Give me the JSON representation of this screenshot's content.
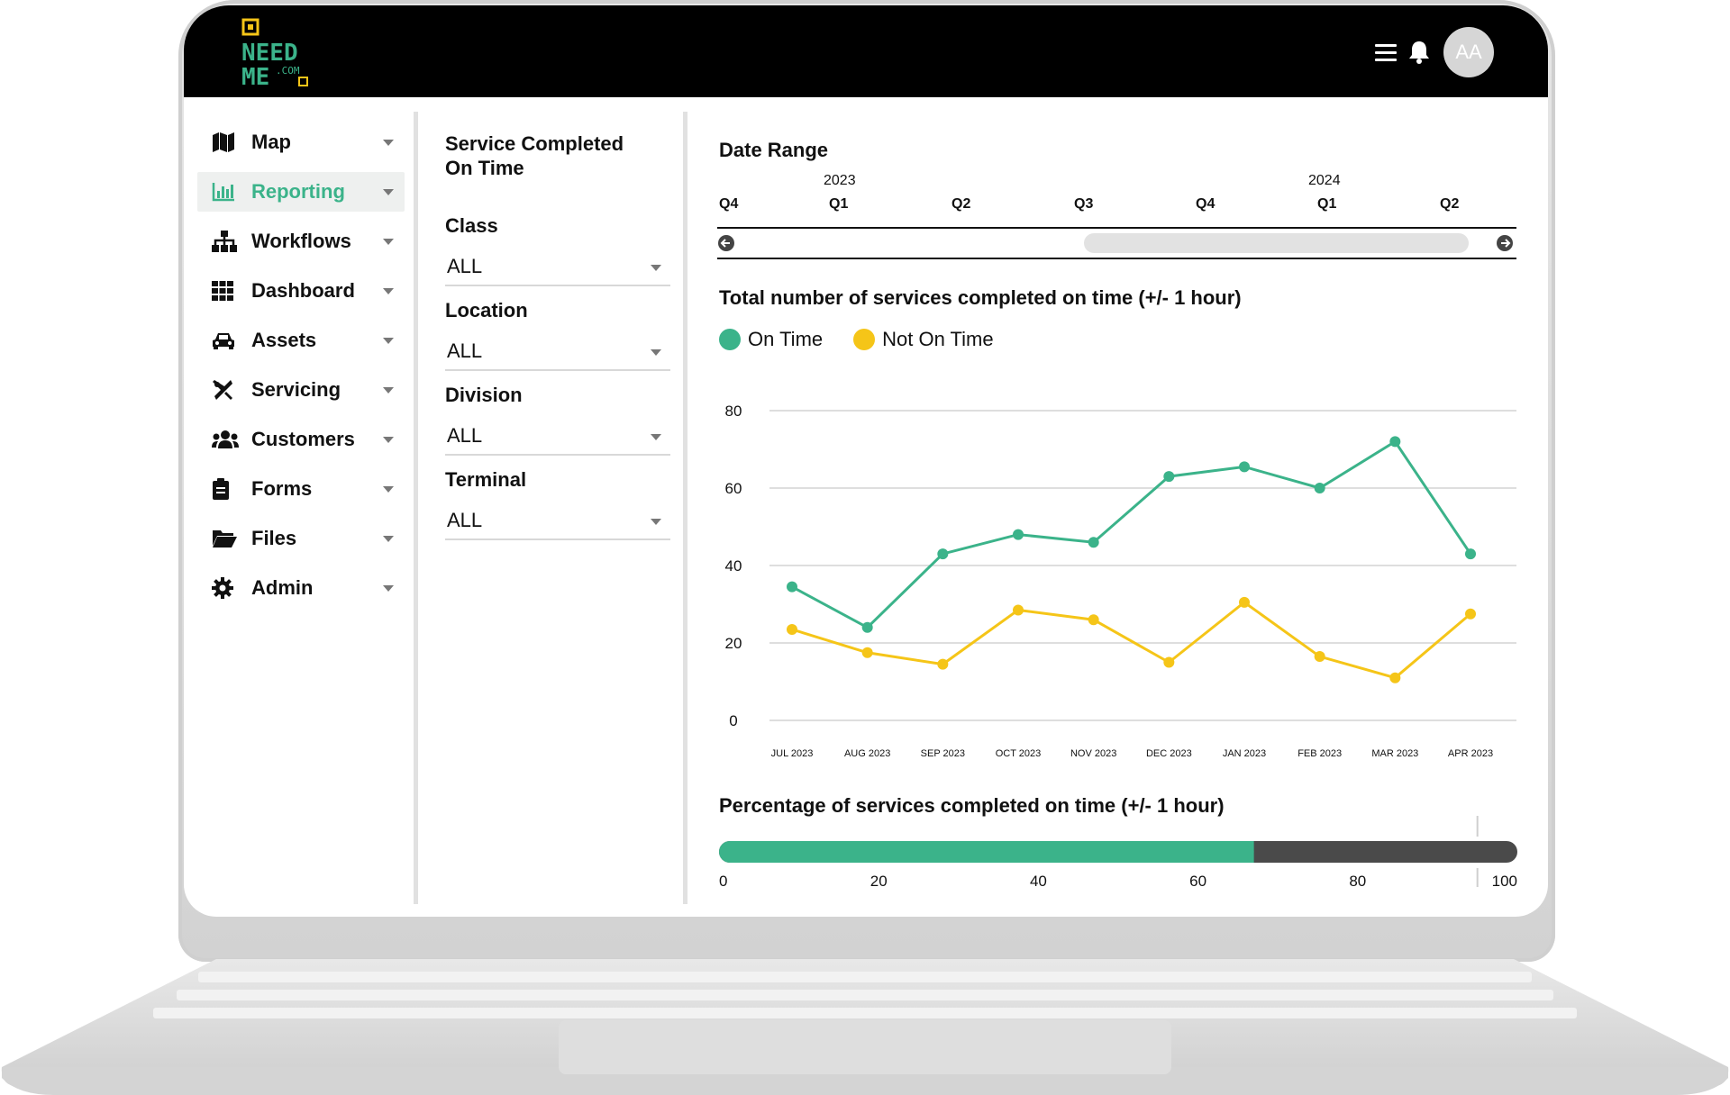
{
  "colors": {
    "accent": "#3bb38a",
    "on_time": "#3bb38a",
    "not_on_time": "#f5c518",
    "bar_rest": "#4a4a4a",
    "logo_yellow": "#f5c518"
  },
  "header": {
    "logo_line1": "NEED",
    "logo_line2": "ME",
    "logo_suffix": ".COM",
    "avatar_initials": "AA",
    "icons": [
      "menu-icon",
      "bell-icon"
    ]
  },
  "sidebar": {
    "items": [
      {
        "label": "Map",
        "icon": "map-icon"
      },
      {
        "label": "Reporting",
        "icon": "bar-chart-icon",
        "active": true
      },
      {
        "label": "Workflows",
        "icon": "sitemap-icon"
      },
      {
        "label": "Dashboard",
        "icon": "grid-icon"
      },
      {
        "label": "Assets",
        "icon": "car-icon"
      },
      {
        "label": "Servicing",
        "icon": "tools-icon"
      },
      {
        "label": "Customers",
        "icon": "users-icon"
      },
      {
        "label": "Forms",
        "icon": "clipboard-icon"
      },
      {
        "label": "Files",
        "icon": "folder-icon"
      },
      {
        "label": "Admin",
        "icon": "gear-icon"
      }
    ]
  },
  "filters": {
    "title": "Service Completed On Time",
    "class": {
      "label": "Class",
      "value": "ALL"
    },
    "location": {
      "label": "Location",
      "value": "ALL"
    },
    "division": {
      "label": "Division",
      "value": "ALL"
    },
    "terminal": {
      "label": "Terminal",
      "value": "ALL"
    }
  },
  "date_range": {
    "label": "Date Range",
    "years": [
      "2023",
      "2024"
    ],
    "quarters": [
      "Q4",
      "Q1",
      "Q2",
      "Q3",
      "Q4",
      "Q1",
      "Q2"
    ],
    "selected_quarters": [
      "Q3",
      "Q2"
    ]
  },
  "chart_data": [
    {
      "type": "line",
      "title": "Total number of services completed on time (+/- 1 hour)",
      "categories": [
        "JUL 2023",
        "AUG 2023",
        "SEP 2023",
        "OCT 2023",
        "NOV 2023",
        "DEC 2023",
        "JAN 2023",
        "FEB 2023",
        "MAR 2023",
        "APR  2023"
      ],
      "series": [
        {
          "name": "On Time",
          "color": "#3bb38a",
          "values": [
            34.5,
            24,
            43,
            48,
            46,
            63,
            65.5,
            60,
            72,
            43
          ]
        },
        {
          "name": "Not On Time",
          "color": "#f5c518",
          "values": [
            23.5,
            17.5,
            14.5,
            28.5,
            26,
            15,
            30.5,
            16.5,
            11,
            27.5
          ]
        }
      ],
      "yticks": [
        0,
        20,
        40,
        60,
        80
      ],
      "ylim": [
        0,
        80
      ],
      "grid": true,
      "legend": "top-left"
    },
    {
      "type": "bar",
      "title": "Percentage of services completed on time (+/- 1 hour)",
      "value": 67,
      "xticks": [
        0,
        20,
        40,
        60,
        80,
        100
      ],
      "xlim": [
        0,
        100
      ],
      "target": 95
    }
  ]
}
